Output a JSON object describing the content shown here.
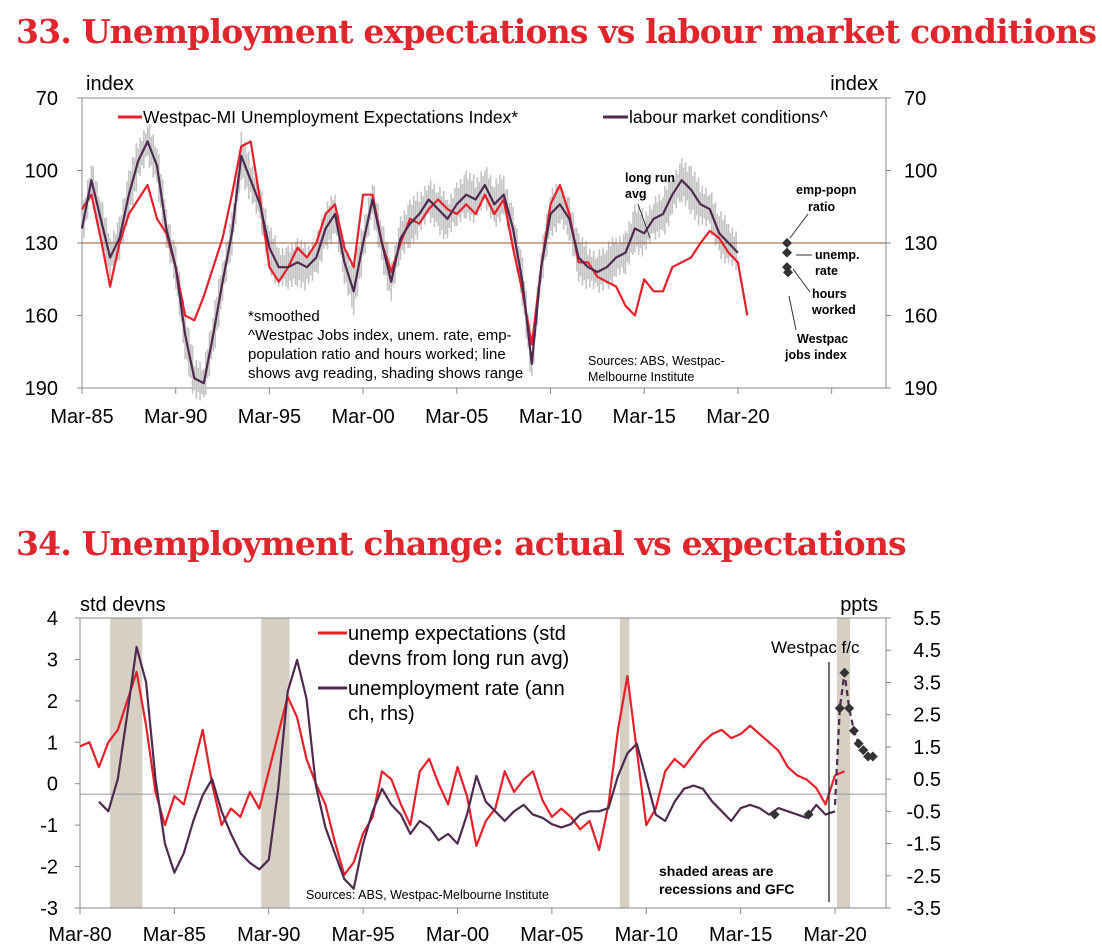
{
  "colors": {
    "red": "#e8202a",
    "purple": "#4e2a4f",
    "grey": "#c4c4c4",
    "shade": "#d6d0c4",
    "refline": "#a0522d",
    "title": "#e0252c"
  },
  "chart_data": [
    {
      "type": "line",
      "title": "33. Unemployment expectations vs labour market conditions",
      "ylabel_left": "index",
      "ylabel_right": "index",
      "yaxis_inverted": true,
      "ylim": [
        70,
        190
      ],
      "yticks": [
        "70",
        "100",
        "130",
        "160",
        "190"
      ],
      "xlim": [
        1985.0,
        2027.9
      ],
      "xticks": [
        "Mar-85",
        "Mar-90",
        "Mar-95",
        "Mar-00",
        "Mar-05",
        "Mar-10",
        "Mar-15",
        "Mar-20"
      ],
      "long_run_avg": 130,
      "legend": [
        "Westpac-MI Unemployment Expectations Index*",
        "labour market conditions^"
      ],
      "series": [
        {
          "name": "Westpac-MI Unemployment Expectations Index*",
          "color": "red",
          "x": [
            1985.0,
            1985.5,
            1986.0,
            1986.5,
            1987.0,
            1987.5,
            1988.0,
            1988.5,
            1989.0,
            1989.5,
            1990.0,
            1990.5,
            1991.0,
            1991.5,
            1992.0,
            1992.5,
            1993.0,
            1993.5,
            1994.0,
            1994.5,
            1995.0,
            1995.5,
            1996.0,
            1996.5,
            1997.0,
            1997.5,
            1998.0,
            1998.5,
            1999.0,
            1999.5,
            2000.0,
            2000.5,
            2001.0,
            2001.5,
            2002.0,
            2002.5,
            2003.0,
            2003.5,
            2004.0,
            2004.5,
            2005.0,
            2005.5,
            2006.0,
            2006.5,
            2007.0,
            2007.5,
            2008.0,
            2008.5,
            2009.0,
            2009.5,
            2010.0,
            2010.5,
            2011.0,
            2011.5,
            2012.0,
            2012.5,
            2013.0,
            2013.5,
            2014.0,
            2014.5,
            2015.0,
            2015.5,
            2016.0,
            2016.5,
            2017.0,
            2017.5,
            2018.0,
            2018.5,
            2019.0,
            2019.5,
            2020.0,
            2020.5
          ],
          "values": [
            116,
            110,
            128,
            148,
            130,
            118,
            112,
            106,
            120,
            126,
            140,
            160,
            162,
            152,
            140,
            128,
            110,
            90,
            88,
            112,
            140,
            146,
            140,
            132,
            136,
            130,
            118,
            114,
            132,
            140,
            110,
            110,
            130,
            142,
            130,
            120,
            122,
            116,
            112,
            116,
            118,
            114,
            118,
            110,
            118,
            112,
            132,
            150,
            172,
            140,
            114,
            106,
            118,
            138,
            138,
            144,
            146,
            148,
            156,
            160,
            145,
            150,
            150,
            140,
            138,
            136,
            130,
            125,
            128,
            134,
            138,
            160
          ]
        },
        {
          "name": "labour market conditions^",
          "color": "purple",
          "x": [
            1985.0,
            1985.5,
            1986.0,
            1986.5,
            1987.0,
            1987.5,
            1988.0,
            1988.5,
            1989.0,
            1989.5,
            1990.0,
            1990.5,
            1991.0,
            1991.5,
            1992.0,
            1992.5,
            1993.0,
            1993.5,
            1994.0,
            1994.5,
            1995.0,
            1995.5,
            1996.0,
            1996.5,
            1997.0,
            1997.5,
            1998.0,
            1998.5,
            1999.0,
            1999.5,
            2000.0,
            2000.5,
            2001.0,
            2001.5,
            2002.0,
            2002.5,
            2003.0,
            2003.5,
            2004.0,
            2004.5,
            2005.0,
            2005.5,
            2006.0,
            2006.5,
            2007.0,
            2007.5,
            2008.0,
            2008.5,
            2009.0,
            2009.5,
            2010.0,
            2010.5,
            2011.0,
            2011.5,
            2012.0,
            2012.5,
            2013.0,
            2013.5,
            2014.0,
            2014.5,
            2015.0,
            2015.5,
            2016.0,
            2016.5,
            2017.0,
            2017.5,
            2018.0,
            2018.5,
            2019.0,
            2019.5,
            2020.0
          ],
          "values": [
            124,
            104,
            120,
            136,
            128,
            110,
            96,
            88,
            98,
            124,
            140,
            168,
            186,
            188,
            168,
            146,
            126,
            94,
            104,
            114,
            132,
            140,
            140,
            138,
            140,
            136,
            124,
            118,
            138,
            150,
            130,
            112,
            130,
            146,
            128,
            122,
            118,
            112,
            116,
            120,
            114,
            110,
            112,
            106,
            114,
            110,
            124,
            146,
            180,
            140,
            118,
            114,
            120,
            136,
            140,
            142,
            140,
            136,
            134,
            124,
            126,
            120,
            118,
            110,
            104,
            108,
            114,
            116,
            126,
            130,
            134
          ]
        }
      ],
      "markers": [
        {
          "label": "emp-popn ratio",
          "value": 130
        },
        {
          "label": "unemp. rate",
          "value": 134
        },
        {
          "label": "hours worked",
          "value": 140
        },
        {
          "label": "Westpac jobs index",
          "value": 150
        }
      ],
      "marker_labels": {
        "emp1": "emp-popn",
        "emp2": "ratio",
        "unemp1": "unemp.",
        "unemp2": "rate",
        "hours1": "hours",
        "hours2": "worked",
        "westpac1": "Westpac",
        "westpac2": "jobs index"
      },
      "annotations": {
        "long_run_1": "long run",
        "long_run_2": "avg",
        "note_1": "*smoothed",
        "note_2": "^Westpac Jobs index, unem. rate, emp-",
        "note_3": "population ratio and hours worked; line",
        "note_4": "shows avg reading, shading shows range",
        "sources_1": "Sources: ABS, Westpac-",
        "sources_2": "Melbourne Institute"
      }
    },
    {
      "type": "line",
      "title": "34. Unemployment change: actual vs expectations",
      "ylabel_left": "std devns",
      "ylabel_right": "ppts",
      "ylim_left": [
        -3,
        4
      ],
      "ylim_right": [
        -3.5,
        5.5
      ],
      "yticks_left": [
        "4",
        "3",
        "2",
        "1",
        "0",
        "-1",
        "-2",
        "-3"
      ],
      "yticks_right": [
        "5.5",
        "4.5",
        "3.5",
        "2.5",
        "1.5",
        "0.5",
        "-0.5",
        "-1.5",
        "-2.5",
        "-3.5"
      ],
      "xlim": [
        1980.0,
        2022.7
      ],
      "xticks": [
        "Mar-80",
        "Mar-85",
        "Mar-90",
        "Mar-95",
        "Mar-00",
        "Mar-05",
        "Mar-10",
        "Mar-15",
        "Mar-20"
      ],
      "recessions": [
        [
          1981.6,
          1983.3
        ],
        [
          1989.6,
          1991.1
        ],
        [
          2008.6,
          2009.1
        ],
        [
          2020.1,
          2020.8
        ]
      ],
      "legend": [
        "unemp expectations (std devns from long run avg)",
        "unemployment rate (ann ch, rhs)"
      ],
      "legend_lines": [
        "unemp expectations (std",
        "devns from long run avg)",
        "unemployment rate (ann",
        "ch, rhs)"
      ],
      "series": [
        {
          "name": "unemp expectations (std devns from long run avg)",
          "color": "red",
          "axis": "left",
          "x": [
            1980.0,
            1980.5,
            1981.0,
            1981.5,
            1982.0,
            1982.5,
            1983.0,
            1983.5,
            1984.0,
            1984.5,
            1985.0,
            1985.5,
            1986.0,
            1986.5,
            1987.0,
            1987.5,
            1988.0,
            1988.5,
            1989.0,
            1989.5,
            1990.0,
            1990.5,
            1991.0,
            1991.5,
            1992.0,
            1992.5,
            1993.0,
            1993.5,
            1994.0,
            1994.5,
            1995.0,
            1995.5,
            1996.0,
            1996.5,
            1997.0,
            1997.5,
            1998.0,
            1998.5,
            1999.0,
            1999.5,
            2000.0,
            2000.5,
            2001.0,
            2001.5,
            2002.0,
            2002.5,
            2003.0,
            2003.5,
            2004.0,
            2004.5,
            2005.0,
            2005.5,
            2006.0,
            2006.5,
            2007.0,
            2007.5,
            2008.0,
            2008.5,
            2009.0,
            2009.5,
            2010.0,
            2010.5,
            2011.0,
            2011.5,
            2012.0,
            2012.5,
            2013.0,
            2013.5,
            2014.0,
            2014.5,
            2015.0,
            2015.5,
            2016.0,
            2016.5,
            2017.0,
            2017.5,
            2018.0,
            2018.5,
            2019.0,
            2019.5,
            2020.0,
            2020.5
          ],
          "values": [
            0.9,
            1.0,
            0.4,
            1.0,
            1.3,
            2.0,
            2.7,
            1.4,
            -0.2,
            -1.0,
            -0.3,
            -0.5,
            0.4,
            1.3,
            0.0,
            -1.0,
            -0.6,
            -0.8,
            -0.2,
            -0.6,
            0.3,
            1.2,
            2.1,
            1.6,
            0.6,
            0.0,
            -0.5,
            -1.4,
            -2.2,
            -1.9,
            -1.2,
            -0.8,
            0.3,
            0.1,
            -0.5,
            -1.0,
            0.3,
            0.6,
            0.0,
            -0.5,
            0.4,
            -0.3,
            -1.5,
            -0.9,
            -0.6,
            0.3,
            -0.2,
            0.1,
            0.3,
            -0.4,
            -0.8,
            -0.6,
            -0.8,
            -1.1,
            -0.9,
            -1.6,
            -0.5,
            1.3,
            2.6,
            0.8,
            -1.0,
            -0.6,
            0.3,
            0.6,
            0.4,
            0.7,
            1.0,
            1.2,
            1.3,
            1.1,
            1.2,
            1.4,
            1.2,
            1.0,
            0.8,
            0.4,
            0.2,
            0.1,
            -0.1,
            -0.5,
            0.2,
            0.3
          ]
        },
        {
          "name": "unemployment rate (ann ch, rhs)",
          "color": "purple",
          "axis": "right",
          "x": [
            1981.0,
            1981.5,
            1982.0,
            1982.5,
            1983.0,
            1983.5,
            1984.0,
            1984.5,
            1985.0,
            1985.5,
            1986.0,
            1986.5,
            1987.0,
            1987.5,
            1988.0,
            1988.5,
            1989.0,
            1989.5,
            1990.0,
            1990.5,
            1991.0,
            1991.5,
            1992.0,
            1992.5,
            1993.0,
            1993.5,
            1994.0,
            1994.5,
            1995.0,
            1995.5,
            1996.0,
            1996.5,
            1997.0,
            1997.5,
            1998.0,
            1998.5,
            1999.0,
            1999.5,
            2000.0,
            2000.5,
            2001.0,
            2001.5,
            2002.0,
            2002.5,
            2003.0,
            2003.5,
            2004.0,
            2004.5,
            2005.0,
            2005.5,
            2006.0,
            2006.5,
            2007.0,
            2007.5,
            2008.0,
            2008.5,
            2009.0,
            2009.5,
            2010.0,
            2010.5,
            2011.0,
            2011.5,
            2012.0,
            2012.5,
            2013.0,
            2013.5,
            2014.0,
            2014.5,
            2015.0,
            2015.5,
            2016.0,
            2016.5,
            2017.0,
            2017.5,
            2018.0,
            2018.5,
            2019.0,
            2019.5,
            2020.0
          ],
          "values": [
            -0.2,
            -0.5,
            0.5,
            2.5,
            4.6,
            3.5,
            0.5,
            -1.5,
            -2.4,
            -1.8,
            -0.8,
            0.0,
            0.5,
            -0.5,
            -1.2,
            -1.8,
            -2.1,
            -2.3,
            -2.0,
            0.2,
            3.2,
            4.2,
            3.0,
            0.3,
            -1.0,
            -1.8,
            -2.6,
            -2.9,
            -1.5,
            -0.5,
            0.2,
            -0.3,
            -0.6,
            -1.2,
            -0.8,
            -1.0,
            -1.4,
            -1.2,
            -1.5,
            -0.6,
            0.6,
            -0.2,
            -0.5,
            -0.8,
            -0.5,
            -0.3,
            -0.6,
            -0.7,
            -0.9,
            -1.0,
            -0.9,
            -0.6,
            -0.5,
            -0.5,
            -0.4,
            0.6,
            1.3,
            1.6,
            0.5,
            -0.6,
            -0.8,
            -0.2,
            0.2,
            0.3,
            0.2,
            -0.2,
            -0.5,
            -0.8,
            -0.4,
            -0.3,
            -0.4,
            -0.6,
            -0.4,
            -0.5,
            -0.6,
            -0.7,
            -0.3,
            -0.6,
            -0.5
          ]
        },
        {
          "name": "Westpac f/c",
          "color": "purple",
          "axis": "right",
          "dashed": true,
          "x": [
            2020.0,
            2020.25,
            2020.5,
            2020.75,
            2021.0,
            2021.25,
            2021.5,
            2021.75,
            2022.0
          ],
          "values": [
            -0.3,
            2.7,
            3.8,
            2.7,
            2.0,
            1.6,
            1.4,
            1.2,
            1.2
          ]
        }
      ],
      "annotations": {
        "westpac_fc": "Westpac f/c",
        "shaded_1": "shaded areas are",
        "shaded_2": "recessions and GFC",
        "sources": "Sources: ABS, Westpac-Melbourne Institute"
      }
    }
  ]
}
